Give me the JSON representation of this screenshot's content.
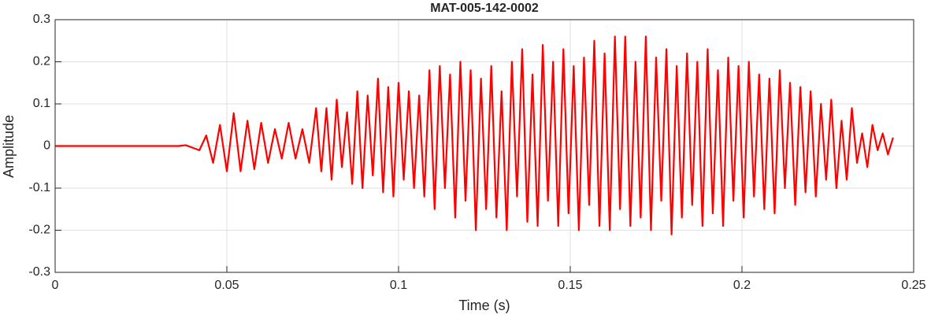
{
  "chart_data": {
    "type": "line",
    "title": "MAT-005-142-0002",
    "xlabel": "Time (s)",
    "ylabel": "Amplitude",
    "xlim": [
      0,
      0.25
    ],
    "xticks": [
      0,
      0.05,
      0.1,
      0.15,
      0.2,
      0.25
    ],
    "ylim": [
      -0.3,
      0.3
    ],
    "yticks": [
      -0.3,
      -0.2,
      -0.1,
      0,
      0.1,
      0.2,
      0.3
    ],
    "grid": true,
    "x": [
      0,
      0.018,
      0.036,
      0.038,
      0.04,
      0.042,
      0.044,
      0.046,
      0.048,
      0.05,
      0.052,
      0.054,
      0.056,
      0.058,
      0.06,
      0.062,
      0.064,
      0.066,
      0.068,
      0.07,
      0.072,
      0.074,
      0.076,
      0.0775,
      0.079,
      0.0805,
      0.082,
      0.0835,
      0.085,
      0.0865,
      0.088,
      0.0895,
      0.091,
      0.0925,
      0.094,
      0.0955,
      0.097,
      0.0985,
      0.1,
      0.1015,
      0.103,
      0.1045,
      0.106,
      0.1075,
      0.109,
      0.1105,
      0.112,
      0.1135,
      0.115,
      0.1165,
      0.118,
      0.1195,
      0.121,
      0.1225,
      0.124,
      0.1255,
      0.127,
      0.1285,
      0.13,
      0.1315,
      0.133,
      0.1345,
      0.136,
      0.1375,
      0.139,
      0.1405,
      0.142,
      0.1435,
      0.145,
      0.1465,
      0.148,
      0.1495,
      0.151,
      0.1525,
      0.154,
      0.1555,
      0.157,
      0.1585,
      0.16,
      0.1615,
      0.163,
      0.1645,
      0.166,
      0.1675,
      0.169,
      0.1705,
      0.172,
      0.1735,
      0.175,
      0.1765,
      0.178,
      0.1795,
      0.181,
      0.1825,
      0.184,
      0.1855,
      0.187,
      0.1885,
      0.19,
      0.1915,
      0.193,
      0.1945,
      0.196,
      0.1975,
      0.199,
      0.2005,
      0.202,
      0.2035,
      0.205,
      0.2065,
      0.208,
      0.2095,
      0.211,
      0.2125,
      0.214,
      0.2155,
      0.217,
      0.2185,
      0.22,
      0.2215,
      0.223,
      0.2245,
      0.226,
      0.2275,
      0.229,
      0.2305,
      0.232,
      0.2335,
      0.235,
      0.2365,
      0.238,
      0.2395,
      0.241,
      0.2425,
      0.244
    ],
    "series": [
      {
        "name": "Amplitude",
        "color": "#ff0000",
        "values": [
          0,
          0,
          0,
          0.002,
          -0.004,
          -0.01,
          0.025,
          -0.04,
          0.05,
          -0.06,
          0.078,
          -0.06,
          0.06,
          -0.055,
          0.055,
          -0.04,
          0.04,
          -0.03,
          0.055,
          -0.03,
          0.04,
          -0.04,
          0.09,
          -0.06,
          0.09,
          -0.08,
          0.11,
          -0.05,
          0.08,
          -0.09,
          0.13,
          -0.1,
          0.12,
          -0.07,
          0.16,
          -0.11,
          0.14,
          -0.12,
          0.15,
          -0.08,
          0.13,
          -0.1,
          0.12,
          -0.12,
          0.18,
          -0.15,
          0.19,
          -0.1,
          0.17,
          -0.17,
          0.2,
          -0.13,
          0.18,
          -0.2,
          0.16,
          -0.15,
          0.19,
          -0.17,
          0.13,
          -0.2,
          0.2,
          -0.12,
          0.23,
          -0.18,
          0.17,
          -0.19,
          0.24,
          -0.13,
          0.2,
          -0.19,
          0.23,
          -0.16,
          0.19,
          -0.2,
          0.21,
          -0.14,
          0.25,
          -0.19,
          0.22,
          -0.2,
          0.26,
          -0.15,
          0.26,
          -0.19,
          0.2,
          -0.17,
          0.26,
          -0.2,
          0.21,
          -0.13,
          0.23,
          -0.21,
          0.19,
          -0.17,
          0.22,
          -0.14,
          0.2,
          -0.19,
          0.23,
          -0.16,
          0.18,
          -0.19,
          0.21,
          -0.13,
          0.19,
          -0.17,
          0.2,
          -0.12,
          0.17,
          -0.15,
          0.16,
          -0.16,
          0.18,
          -0.1,
          0.15,
          -0.14,
          0.14,
          -0.11,
          0.13,
          -0.12,
          0.1,
          -0.08,
          0.11,
          -0.1,
          0.06,
          -0.08,
          0.09,
          -0.04,
          0.03,
          -0.05,
          0.05,
          -0.01,
          0.03,
          -0.02,
          0.02
        ]
      }
    ]
  }
}
